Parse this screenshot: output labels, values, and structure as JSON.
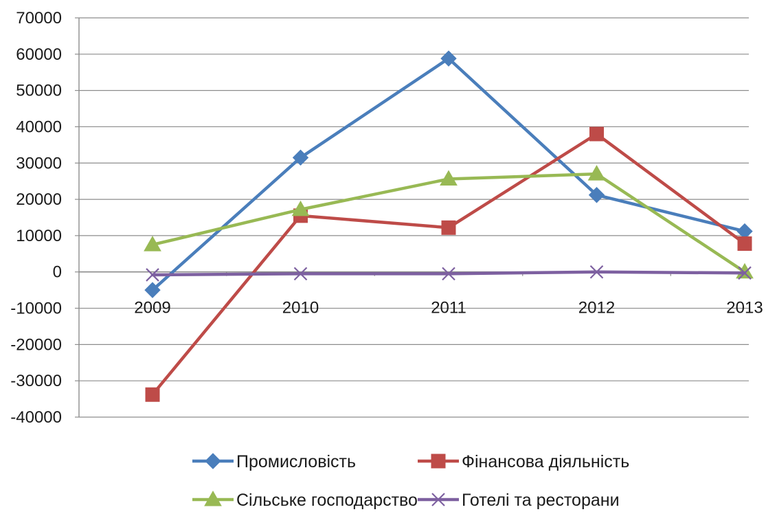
{
  "chart_data": {
    "type": "line",
    "title": "",
    "xlabel": "",
    "ylabel": "",
    "categories": [
      "2009",
      "2010",
      "2011",
      "2012",
      "2013"
    ],
    "ylim": [
      -40000,
      70000
    ],
    "yticks": [
      70000,
      60000,
      50000,
      40000,
      30000,
      20000,
      10000,
      0,
      -10000,
      -20000,
      -30000,
      -40000
    ],
    "grid": "horizontal",
    "legend_position": "bottom",
    "series": [
      {
        "name": "Промисловість",
        "color": "#4a7ebb",
        "marker": "diamond",
        "values": [
          -5000,
          31500,
          58800,
          21200,
          11200
        ]
      },
      {
        "name": "Фінансова діяльність",
        "color": "#be4b48",
        "marker": "square",
        "values": [
          -33800,
          15500,
          12200,
          38000,
          7800
        ]
      },
      {
        "name": "Сільське господарство",
        "color": "#98b954",
        "marker": "triangle",
        "values": [
          7500,
          17200,
          25600,
          27000,
          0
        ]
      },
      {
        "name": "Готелі та ресторани",
        "color": "#7d60a0",
        "marker": "x",
        "values": [
          -800,
          -500,
          -500,
          0,
          -300
        ]
      }
    ]
  }
}
